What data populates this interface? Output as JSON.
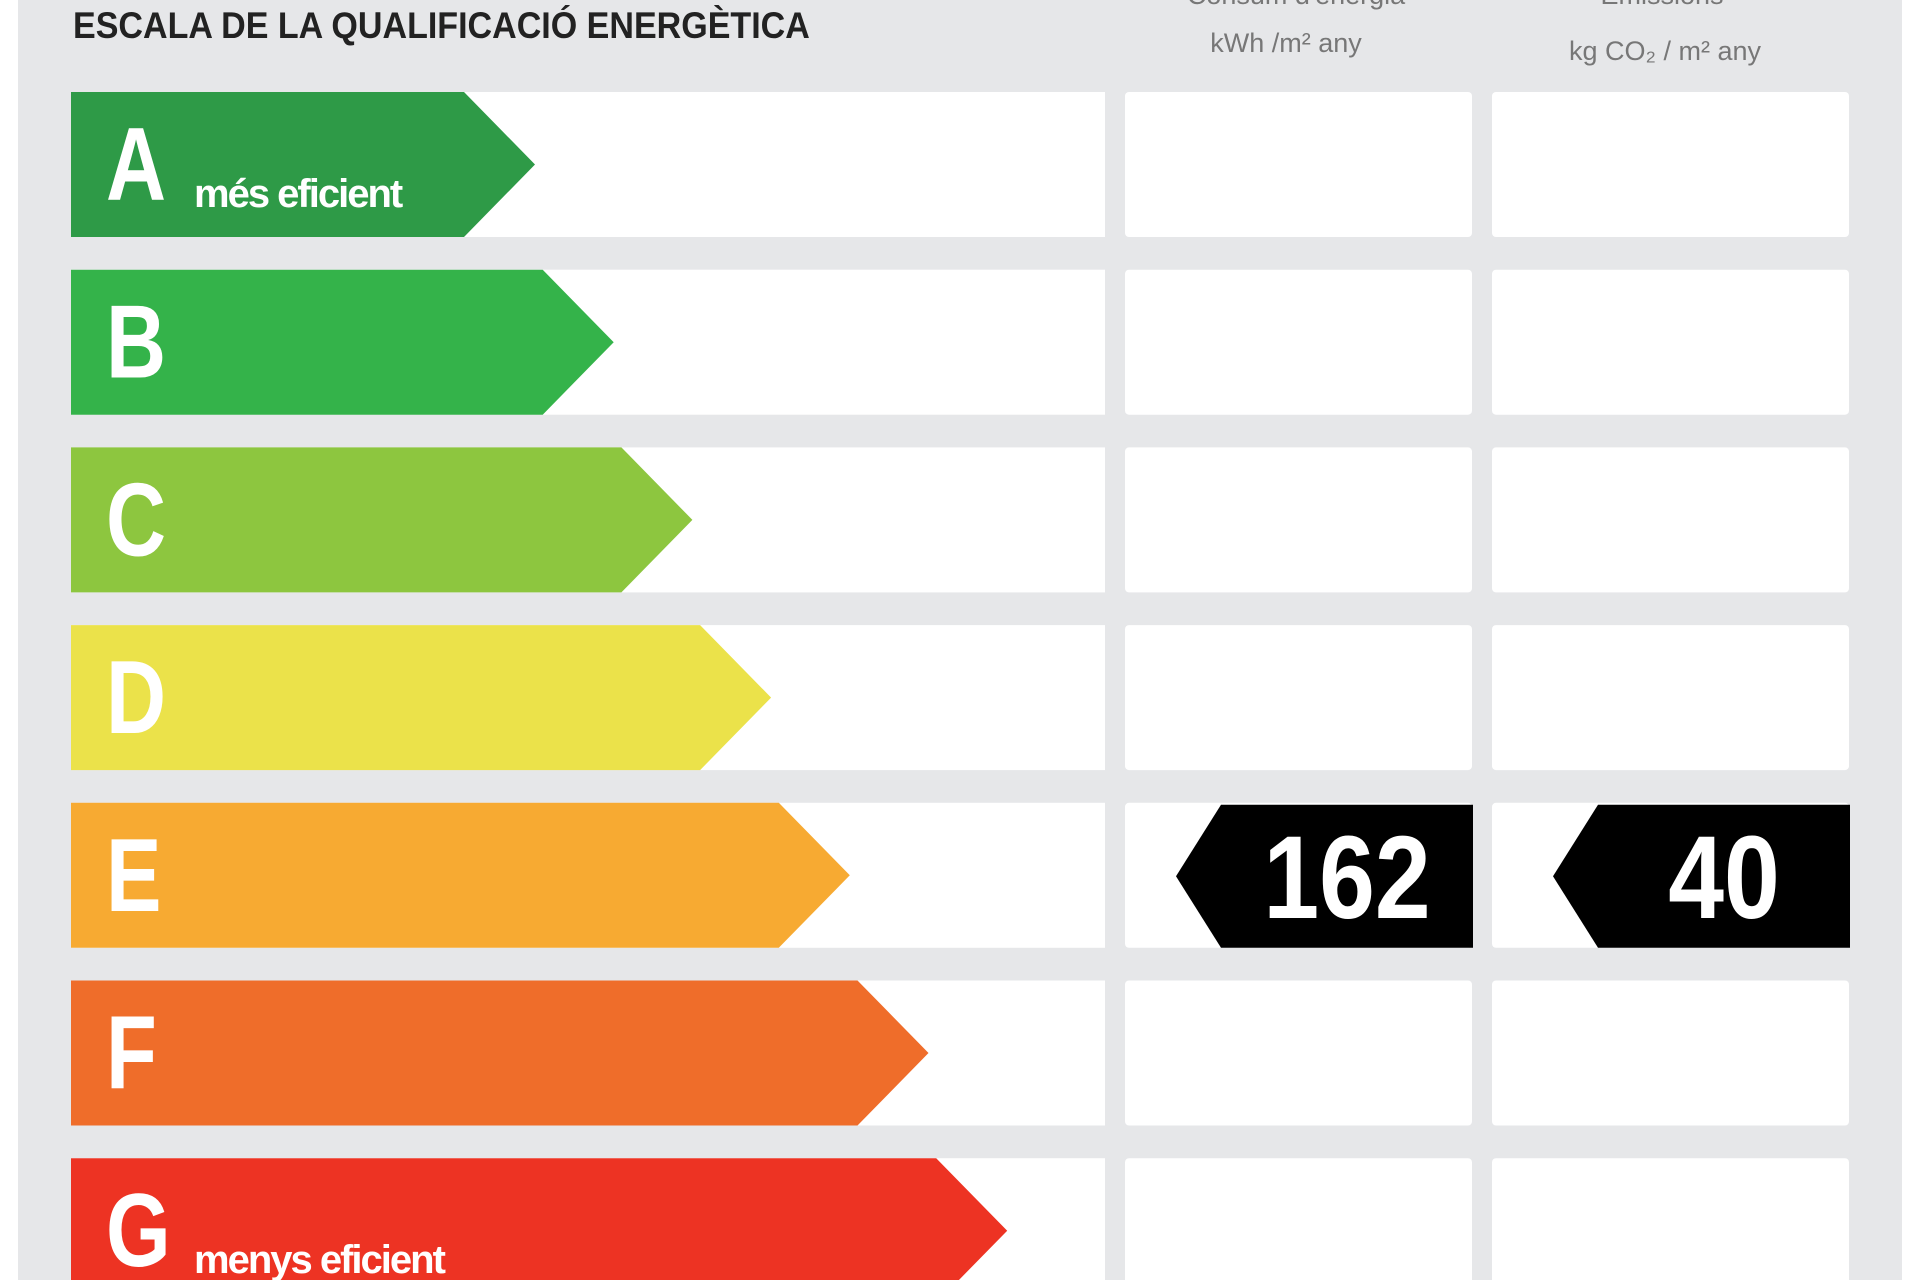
{
  "header": {
    "title": "ESCALA DE LA QUALIFICACIÓ ENERGÈTICA",
    "columns": [
      {
        "title": "Consum d'energia",
        "unit": "kWh /m² any"
      },
      {
        "title": "Emissions",
        "unit": "kg CO₂ / m² any"
      }
    ]
  },
  "rows": [
    {
      "letter": "A",
      "note": "més eficient",
      "color": "#2e9a47"
    },
    {
      "letter": "B",
      "color": "#34b34a"
    },
    {
      "letter": "C",
      "color": "#8dc63f"
    },
    {
      "letter": "D",
      "color": "#ebe24a"
    },
    {
      "letter": "E",
      "color": "#f7aa32",
      "consumption": 162,
      "emissions": 40
    },
    {
      "letter": "F",
      "color": "#ef6d2a"
    },
    {
      "letter": "G",
      "note": "menys eficient",
      "color": "#ed3323"
    }
  ]
}
